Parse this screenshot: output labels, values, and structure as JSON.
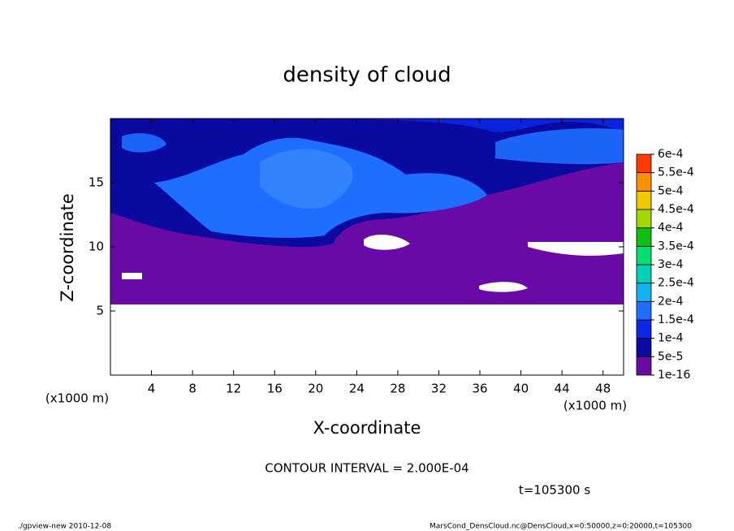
{
  "chart_data": {
    "type": "contour",
    "title": "density of cloud",
    "x_label": "X-coordinate",
    "y_label": "Z-coordinate",
    "x_unit": "(x1000 m)",
    "y_unit": "(x1000 m)",
    "xlim": [
      0,
      50
    ],
    "xticks": [
      4,
      8,
      12,
      16,
      20,
      24,
      28,
      32,
      36,
      40,
      44,
      48
    ],
    "ylim": [
      0,
      20
    ],
    "yticks": [
      5,
      10,
      15
    ],
    "colorbar": {
      "levels": [
        {
          "value": 1e-16,
          "label": "1e-16"
        },
        {
          "value": 5e-05,
          "label": "5e-5"
        },
        {
          "value": 0.0001,
          "label": "1e-4"
        },
        {
          "value": 0.00015,
          "label": "1.5e-4"
        },
        {
          "value": 0.0002,
          "label": "2e-4"
        },
        {
          "value": 0.00025,
          "label": "2.5e-4"
        },
        {
          "value": 0.0003,
          "label": "3e-4"
        },
        {
          "value": 0.00035,
          "label": "3.5e-4"
        },
        {
          "value": 0.0004,
          "label": "4e-4"
        },
        {
          "value": 0.00045,
          "label": "4.5e-4"
        },
        {
          "value": 0.0005,
          "label": "5e-4"
        },
        {
          "value": 0.00055,
          "label": "5.5e-4"
        },
        {
          "value": 0.0006,
          "label": "6e-4"
        }
      ],
      "colors": [
        "#6a0aa6",
        "#0a0aa0",
        "#0a28e6",
        "#1e6eff",
        "#10b4f0",
        "#00d2b4",
        "#00e070",
        "#10c010",
        "#a0d800",
        "#f0c800",
        "#ff9000",
        "#ff3c00",
        "#ff8c8c"
      ]
    },
    "contour_interval_label": "CONTOUR INTERVAL = 2.000E-04",
    "time_label": "t=105300 s",
    "footer_left": "./gpview-new  2010-12-08",
    "footer_right": "MarsCond_DensCloud.nc@DensCloud,x=0:50000,z=0:20000,t=105300"
  }
}
